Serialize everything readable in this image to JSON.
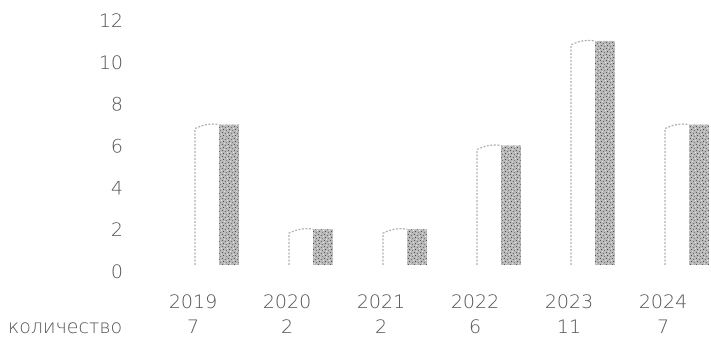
{
  "chart_data": {
    "type": "bar",
    "categories": [
      "2019",
      "2020",
      "2021",
      "2022",
      "2023",
      "2024"
    ],
    "series": [
      {
        "name": "количество",
        "values": [
          7,
          2,
          2,
          6,
          11,
          7
        ]
      }
    ],
    "y_ticks": [
      "0",
      "2",
      "4",
      "6",
      "8",
      "10",
      "12"
    ],
    "ylim": [
      0,
      12
    ],
    "title": "",
    "xlabel": "",
    "ylabel": "",
    "grid": false,
    "legend": "none",
    "bar_color": "#8c8c8c",
    "text_color": "#555555"
  }
}
